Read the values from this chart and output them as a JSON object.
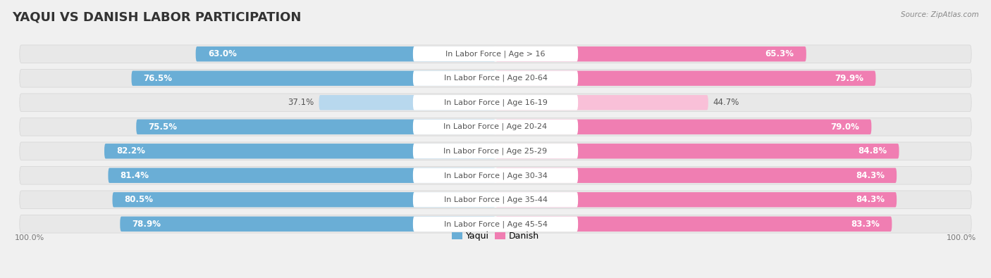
{
  "title": "YAQUI VS DANISH LABOR PARTICIPATION",
  "source": "Source: ZipAtlas.com",
  "categories": [
    "In Labor Force | Age > 16",
    "In Labor Force | Age 20-64",
    "In Labor Force | Age 16-19",
    "In Labor Force | Age 20-24",
    "In Labor Force | Age 25-29",
    "In Labor Force | Age 30-34",
    "In Labor Force | Age 35-44",
    "In Labor Force | Age 45-54"
  ],
  "yaqui_values": [
    63.0,
    76.5,
    37.1,
    75.5,
    82.2,
    81.4,
    80.5,
    78.9
  ],
  "danish_values": [
    65.3,
    79.9,
    44.7,
    79.0,
    84.8,
    84.3,
    84.3,
    83.3
  ],
  "yaqui_color": "#6AAED6",
  "danish_color": "#F07EB2",
  "yaqui_color_light": "#B8D8EE",
  "danish_color_light": "#F9C0D8",
  "background_color": "#f0f0f0",
  "row_bg_color": "#e8e8e8",
  "title_fontsize": 13,
  "label_fontsize": 8.0,
  "value_fontsize": 8.5,
  "legend_yaqui": "Yaqui",
  "legend_danish": "Danish"
}
